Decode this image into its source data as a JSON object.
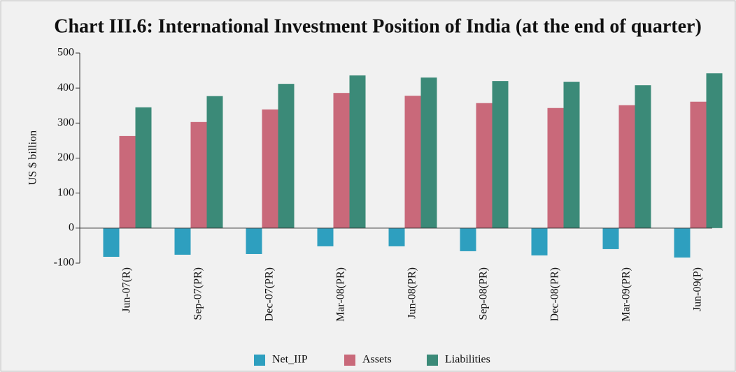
{
  "chart_data": {
    "type": "bar",
    "title": "Chart III.6: International Investment Position of India (at the end of quarter)",
    "ylabel": "US $ billion",
    "categories": [
      "Jun-07(R)",
      "Sep-07(PR)",
      "Dec-07(PR)",
      "Mar-08(PR)",
      "Jun-08(PR)",
      "Sep-08(PR)",
      "Dec-08(PR)",
      "Mar-09(PR)",
      "Jun-09(P)"
    ],
    "series": [
      {
        "name": "Net_IIP",
        "color": "#2e9fbf",
        "values": [
          -82,
          -76,
          -74,
          -52,
          -52,
          -66,
          -78,
          -60,
          -84
        ]
      },
      {
        "name": "Assets",
        "color": "#c9697a",
        "values": [
          263,
          303,
          339,
          386,
          378,
          357,
          343,
          351,
          361
        ]
      },
      {
        "name": "Liabilities",
        "color": "#3b8a78",
        "values": [
          345,
          377,
          412,
          436,
          430,
          420,
          418,
          408,
          442
        ]
      }
    ],
    "ylim": [
      -100,
      500
    ],
    "yticks": [
      -100,
      0,
      100,
      200,
      300,
      400,
      500
    ],
    "legend": "bottom"
  }
}
